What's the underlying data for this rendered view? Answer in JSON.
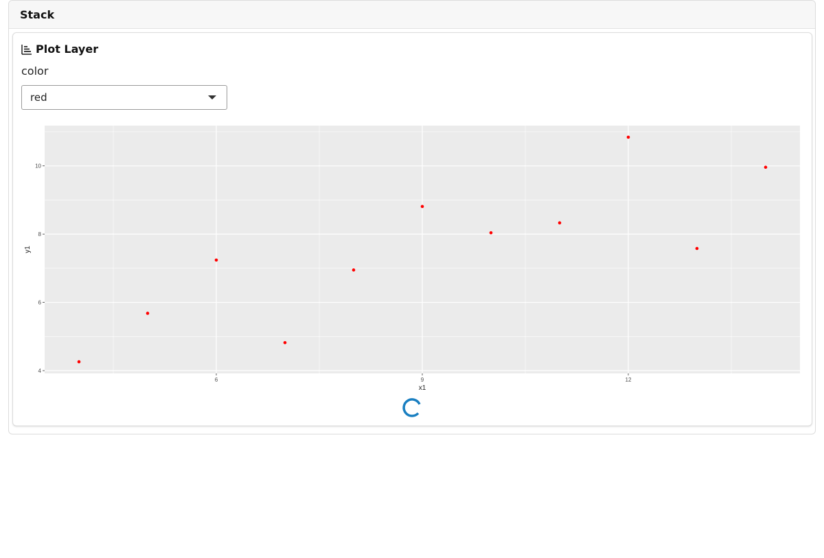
{
  "stack": {
    "title": "Stack"
  },
  "layer": {
    "title": "Plot Layer",
    "icon": "bar-chart-steps-icon",
    "field_label": "color",
    "select_value": "red"
  },
  "colors": {
    "point": "#ff0000",
    "panel_bg": "#ebebeb",
    "grid": "#ffffff",
    "spinner": "#1a7fc1"
  },
  "chart_data": {
    "type": "scatter",
    "x": [
      4,
      5,
      6,
      7,
      8,
      9,
      10,
      11,
      12,
      13,
      14
    ],
    "y": [
      4.26,
      5.68,
      7.24,
      4.82,
      6.95,
      8.81,
      8.04,
      8.33,
      10.84,
      7.58,
      9.96
    ],
    "xlabel": "x1",
    "ylabel": "y1",
    "xlim": [
      3.5,
      14.5
    ],
    "ylim": [
      3.92,
      11.18
    ],
    "xticks": [
      6,
      9,
      12
    ],
    "yticks": [
      4,
      6,
      8,
      10
    ],
    "xtick_labels": [
      "6",
      "9",
      "12"
    ],
    "ytick_labels": [
      "4",
      "6",
      "8",
      "10"
    ],
    "grid": true
  }
}
